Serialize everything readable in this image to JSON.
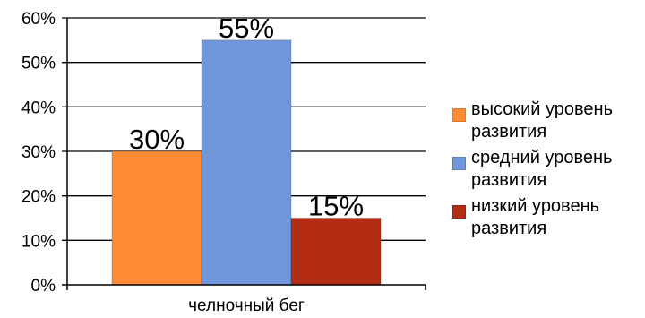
{
  "chart_data": {
    "type": "bar",
    "categories": [
      "челночный бег"
    ],
    "series": [
      {
        "name": "высокий уровень развития",
        "values": [
          30
        ],
        "label": "30%",
        "color": "#FF8C35"
      },
      {
        "name": "средний уровень развития",
        "values": [
          55
        ],
        "label": "55%",
        "color": "#7097DB"
      },
      {
        "name": "низкий уровень развития",
        "values": [
          15
        ],
        "label": "15%",
        "color": "#B22D14"
      }
    ],
    "yticks": [
      "0%",
      "10%",
      "20%",
      "30%",
      "40%",
      "50%",
      "60%"
    ],
    "ylim": [
      0,
      60
    ],
    "grid": true,
    "legend_position": "right",
    "title": "",
    "xlabel": "",
    "ylabel": ""
  }
}
